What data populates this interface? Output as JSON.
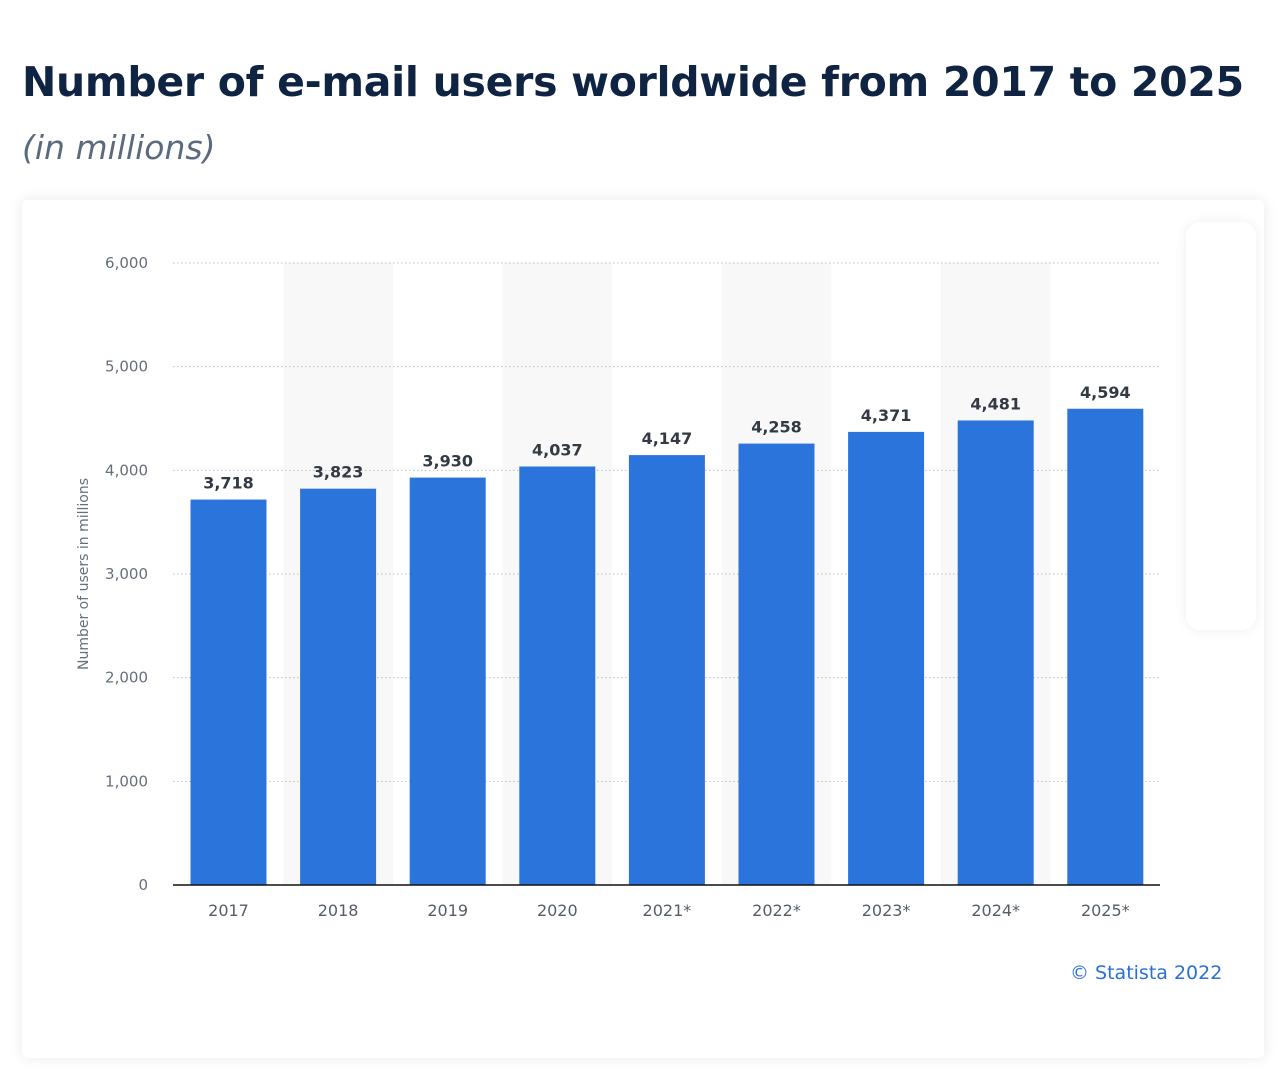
{
  "header": {
    "title": "Number of e-mail users worldwide from 2017 to 2025",
    "subtitle": "(in millions)"
  },
  "chart_data": {
    "type": "bar",
    "categories": [
      "2017",
      "2018",
      "2019",
      "2020",
      "2021*",
      "2022*",
      "2023*",
      "2024*",
      "2025*"
    ],
    "values": [
      3718,
      3823,
      3930,
      4037,
      4147,
      4258,
      4371,
      4481,
      4594
    ],
    "value_labels": [
      "3,718",
      "3,823",
      "3,930",
      "4,037",
      "4,147",
      "4,258",
      "4,371",
      "4,481",
      "4,594"
    ],
    "ylabel": "Number of users in millions",
    "xlabel": "",
    "ylim": [
      0,
      6000
    ],
    "yticks": [
      0,
      1000,
      2000,
      3000,
      4000,
      5000,
      6000
    ],
    "ytick_labels": [
      "0",
      "1,000",
      "2,000",
      "3,000",
      "4,000",
      "5,000",
      "6,000"
    ],
    "grid": true,
    "bar_color": "#2b74db",
    "band_color": "#f8f8f8"
  },
  "footer": {
    "credit": "© Statista 2022"
  }
}
